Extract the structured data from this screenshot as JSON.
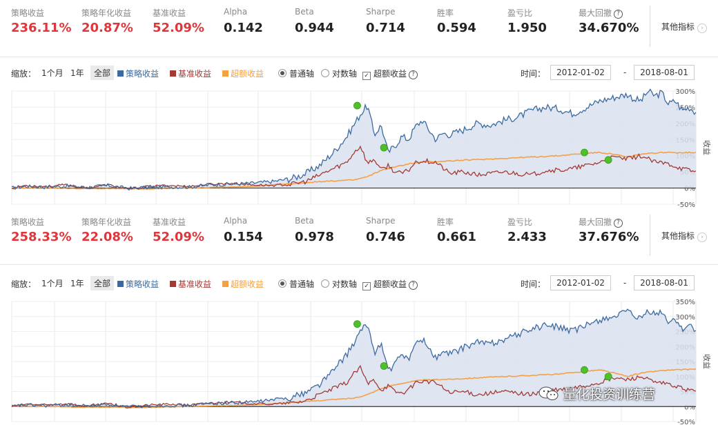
{
  "labels": {
    "zoom": "缩放：",
    "range_1m": "1个月",
    "range_1y": "1年",
    "range_all": "全部",
    "legend_strategy": "策略收益",
    "legend_benchmark": "基准收益",
    "legend_excess": "超额收益",
    "axis_normal": "普通轴",
    "axis_log": "对数轴",
    "excess_check": "超额收益",
    "time": "时间：",
    "date_start": "2012-01-02",
    "date_sep": "-",
    "date_end": "2018-08-01",
    "other_metrics": "其他指标",
    "y_axis_title": "收益"
  },
  "colors": {
    "strategy": "#3c6aa0",
    "benchmark": "#a33a36",
    "excess": "#f5a043",
    "red_value": "#e0353b",
    "marker": "#4ec02a"
  },
  "panels": [
    {
      "stats": [
        {
          "label": "策略收益",
          "value": "236.11%",
          "red": true
        },
        {
          "label": "策略年化收益",
          "value": "20.87%",
          "red": true
        },
        {
          "label": "基准收益",
          "value": "52.09%",
          "red": true
        },
        {
          "label": "Alpha",
          "value": "0.142",
          "red": false
        },
        {
          "label": "Beta",
          "value": "0.944",
          "red": false
        },
        {
          "label": "Sharpe",
          "value": "0.714",
          "red": false
        },
        {
          "label": "胜率",
          "value": "0.594",
          "red": false
        },
        {
          "label": "盈亏比",
          "value": "1.950",
          "red": false
        },
        {
          "label": "最大回撤",
          "value": "34.670%",
          "red": false,
          "help": "?"
        }
      ],
      "y_ticks": [
        "300%",
        "250%",
        "200%",
        "150%",
        "100%",
        "50%",
        "0%",
        "-50%"
      ]
    },
    {
      "stats": [
        {
          "label": "策略收益",
          "value": "258.33%",
          "red": true
        },
        {
          "label": "策略年化收益",
          "value": "22.08%",
          "red": true
        },
        {
          "label": "基准收益",
          "value": "52.09%",
          "red": true
        },
        {
          "label": "Alpha",
          "value": "0.154",
          "red": false
        },
        {
          "label": "Beta",
          "value": "0.978",
          "red": false
        },
        {
          "label": "Sharpe",
          "value": "0.746",
          "red": false
        },
        {
          "label": "胜率",
          "value": "0.661",
          "red": false
        },
        {
          "label": "盈亏比",
          "value": "2.433",
          "red": false
        },
        {
          "label": "最大回撤",
          "value": "37.676%",
          "red": false,
          "help": "?"
        }
      ],
      "y_ticks": [
        "350%",
        "300%",
        "250%",
        "200%",
        "150%",
        "100%",
        "50%",
        "0%",
        "-50%"
      ]
    }
  ],
  "chart_data": [
    {
      "type": "line",
      "ylim": [
        -50,
        300
      ],
      "x_range": [
        "2012-01-02",
        "2018-08-01"
      ],
      "ylabel": "收益",
      "grid": true,
      "series": [
        {
          "name": "策略收益",
          "x": [
            0,
            0.02,
            0.05,
            0.08,
            0.11,
            0.14,
            0.17,
            0.2,
            0.23,
            0.26,
            0.29,
            0.32,
            0.35,
            0.38,
            0.41,
            0.43,
            0.45,
            0.47,
            0.49,
            0.5,
            0.51,
            0.52,
            0.53,
            0.54,
            0.55,
            0.56,
            0.57,
            0.58,
            0.59,
            0.6,
            0.61,
            0.62,
            0.63,
            0.64,
            0.66,
            0.68,
            0.7,
            0.72,
            0.74,
            0.76,
            0.78,
            0.8,
            0.82,
            0.84,
            0.86,
            0.88,
            0.9,
            0.91,
            0.92,
            0.93,
            0.94,
            0.95,
            0.96,
            0.97,
            0.98,
            0.99,
            1.0
          ],
          "values": [
            0,
            5,
            3,
            6,
            2,
            8,
            -1,
            2,
            4,
            3,
            10,
            12,
            15,
            20,
            30,
            45,
            70,
            110,
            160,
            195,
            230,
            255,
            165,
            195,
            110,
            130,
            160,
            150,
            190,
            210,
            180,
            150,
            170,
            165,
            180,
            200,
            195,
            210,
            220,
            240,
            250,
            245,
            230,
            250,
            270,
            280,
            290,
            275,
            270,
            300,
            285,
            295,
            260,
            270,
            240,
            250,
            235
          ]
        },
        {
          "name": "基准收益",
          "x": [
            0,
            0.02,
            0.05,
            0.08,
            0.11,
            0.14,
            0.17,
            0.2,
            0.23,
            0.26,
            0.29,
            0.32,
            0.35,
            0.38,
            0.41,
            0.43,
            0.45,
            0.47,
            0.49,
            0.5,
            0.51,
            0.52,
            0.53,
            0.54,
            0.55,
            0.56,
            0.57,
            0.58,
            0.59,
            0.6,
            0.62,
            0.64,
            0.66,
            0.68,
            0.7,
            0.72,
            0.74,
            0.76,
            0.78,
            0.8,
            0.82,
            0.84,
            0.86,
            0.88,
            0.9,
            0.92,
            0.94,
            0.96,
            0.98,
            1.0
          ],
          "values": [
            0,
            8,
            5,
            10,
            0,
            10,
            -3,
            5,
            8,
            5,
            12,
            15,
            10,
            8,
            12,
            20,
            40,
            60,
            80,
            110,
            130,
            75,
            90,
            55,
            70,
            50,
            45,
            55,
            80,
            85,
            80,
            45,
            50,
            40,
            45,
            50,
            45,
            40,
            55,
            55,
            60,
            70,
            80,
            95,
            90,
            100,
            80,
            75,
            60,
            50
          ]
        },
        {
          "name": "超额收益",
          "x": [
            0,
            0.05,
            0.1,
            0.15,
            0.2,
            0.25,
            0.3,
            0.35,
            0.4,
            0.45,
            0.5,
            0.52,
            0.54,
            0.56,
            0.58,
            0.6,
            0.65,
            0.7,
            0.75,
            0.8,
            0.84,
            0.86,
            0.88,
            0.9,
            0.92,
            0.95,
            1.0
          ],
          "values": [
            0,
            0,
            -2,
            -2,
            -3,
            0,
            2,
            5,
            12,
            20,
            25,
            35,
            55,
            65,
            75,
            80,
            85,
            90,
            95,
            100,
            108,
            110,
            105,
            95,
            105,
            110,
            110
          ]
        }
      ],
      "markers": [
        {
          "x": 0.505,
          "y": 255
        },
        {
          "x": 0.544,
          "y": 125
        },
        {
          "x": 0.837,
          "y": 110
        },
        {
          "x": 0.872,
          "y": 87
        }
      ]
    },
    {
      "type": "line",
      "ylim": [
        -50,
        350
      ],
      "x_range": [
        "2012-01-02",
        "2018-08-01"
      ],
      "ylabel": "收益",
      "grid": true,
      "series": [
        {
          "name": "策略收益",
          "x": [
            0,
            0.02,
            0.05,
            0.08,
            0.11,
            0.14,
            0.17,
            0.2,
            0.23,
            0.26,
            0.29,
            0.32,
            0.35,
            0.38,
            0.41,
            0.43,
            0.45,
            0.47,
            0.49,
            0.5,
            0.51,
            0.52,
            0.53,
            0.54,
            0.55,
            0.56,
            0.57,
            0.58,
            0.59,
            0.6,
            0.61,
            0.62,
            0.63,
            0.64,
            0.66,
            0.68,
            0.7,
            0.72,
            0.74,
            0.76,
            0.78,
            0.8,
            0.82,
            0.84,
            0.86,
            0.88,
            0.9,
            0.91,
            0.92,
            0.93,
            0.94,
            0.95,
            0.96,
            0.97,
            0.98,
            0.99,
            1.0
          ],
          "values": [
            0,
            5,
            3,
            6,
            2,
            8,
            -1,
            2,
            4,
            3,
            10,
            12,
            15,
            22,
            32,
            48,
            75,
            120,
            175,
            210,
            250,
            275,
            180,
            210,
            120,
            140,
            175,
            160,
            205,
            225,
            195,
            160,
            180,
            175,
            195,
            215,
            210,
            225,
            240,
            260,
            270,
            265,
            250,
            270,
            290,
            300,
            315,
            300,
            290,
            320,
            305,
            315,
            280,
            290,
            260,
            270,
            255
          ]
        },
        {
          "name": "基准收益",
          "x": [
            0,
            0.02,
            0.05,
            0.08,
            0.11,
            0.14,
            0.17,
            0.2,
            0.23,
            0.26,
            0.29,
            0.32,
            0.35,
            0.38,
            0.41,
            0.43,
            0.45,
            0.47,
            0.49,
            0.5,
            0.51,
            0.52,
            0.53,
            0.54,
            0.55,
            0.56,
            0.57,
            0.58,
            0.59,
            0.6,
            0.62,
            0.64,
            0.66,
            0.68,
            0.7,
            0.72,
            0.74,
            0.76,
            0.78,
            0.8,
            0.82,
            0.84,
            0.86,
            0.88,
            0.9,
            0.92,
            0.94,
            0.96,
            0.98,
            1.0
          ],
          "values": [
            0,
            8,
            5,
            10,
            0,
            10,
            -3,
            5,
            8,
            5,
            12,
            15,
            10,
            8,
            12,
            20,
            40,
            60,
            80,
            110,
            130,
            75,
            90,
            55,
            70,
            50,
            45,
            55,
            80,
            85,
            80,
            45,
            50,
            40,
            45,
            50,
            45,
            40,
            55,
            55,
            60,
            70,
            80,
            95,
            90,
            100,
            80,
            75,
            60,
            50
          ]
        },
        {
          "name": "超额收益",
          "x": [
            0,
            0.05,
            0.1,
            0.15,
            0.2,
            0.25,
            0.3,
            0.35,
            0.4,
            0.45,
            0.5,
            0.52,
            0.54,
            0.56,
            0.58,
            0.6,
            0.65,
            0.7,
            0.75,
            0.8,
            0.84,
            0.86,
            0.88,
            0.9,
            0.92,
            0.95,
            1.0
          ],
          "values": [
            0,
            0,
            -2,
            -2,
            -3,
            0,
            2,
            5,
            12,
            20,
            28,
            40,
            60,
            72,
            82,
            88,
            92,
            98,
            103,
            108,
            118,
            122,
            112,
            100,
            112,
            120,
            125
          ]
        }
      ],
      "markers": [
        {
          "x": 0.505,
          "y": 275
        },
        {
          "x": 0.544,
          "y": 135
        },
        {
          "x": 0.837,
          "y": 122
        },
        {
          "x": 0.872,
          "y": 100
        }
      ]
    }
  ],
  "watermark": "量化投资训练营"
}
